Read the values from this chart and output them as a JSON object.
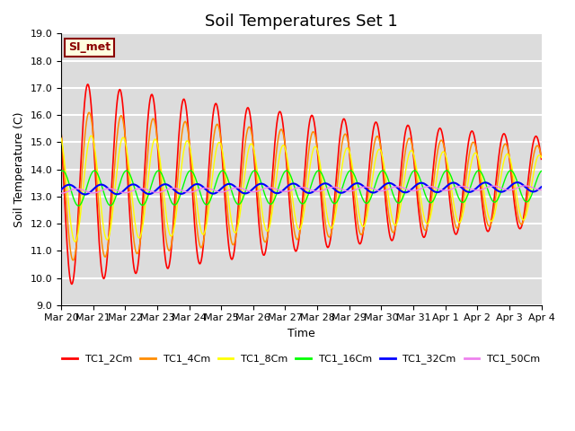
{
  "title": "Soil Temperatures Set 1",
  "xlabel": "Time",
  "ylabel": "Soil Temperature (C)",
  "ylim": [
    9.0,
    19.0
  ],
  "yticks": [
    9.0,
    10.0,
    11.0,
    12.0,
    13.0,
    14.0,
    15.0,
    16.0,
    17.0,
    18.0,
    19.0
  ],
  "ytick_labels": [
    "9.0",
    "10.0",
    "11.0",
    "12.0",
    "13.0",
    "14.0",
    "15.0",
    "16.0",
    "17.0",
    "18.0",
    "19.0"
  ],
  "xtick_labels": [
    "Mar 20",
    "Mar 21",
    "Mar 22",
    "Mar 23",
    "Mar 24",
    "Mar 25",
    "Mar 26",
    "Mar 27",
    "Mar 28",
    "Mar 29",
    "Mar 30",
    "Mar 31",
    "Apr 1",
    "Apr 2",
    "Apr 3",
    "Apr 4"
  ],
  "series_colors": [
    "red",
    "darkorange",
    "yellow",
    "lime",
    "blue",
    "violet"
  ],
  "series_labels": [
    "TC1_2Cm",
    "TC1_4Cm",
    "TC1_8Cm",
    "TC1_16Cm",
    "TC1_32Cm",
    "TC1_50Cm"
  ],
  "legend_label": "SI_met",
  "background_color": "#dcdcdc",
  "grid_color": "white",
  "title_fontsize": 13,
  "axis_fontsize": 9,
  "tick_fontsize": 8,
  "n_days": 15,
  "points_per_day": 48,
  "amplitudes": [
    3.8,
    2.8,
    2.0,
    0.65,
    0.18,
    0.08
  ],
  "phase_lags_hours": [
    0.0,
    1.0,
    2.5,
    5.0,
    10.0,
    16.0
  ],
  "base_temps": [
    13.5,
    13.4,
    13.3,
    13.3,
    13.25,
    13.2
  ],
  "base_trend": [
    0.04,
    0.04,
    0.04,
    0.08,
    0.1,
    0.12
  ],
  "amp_decay": [
    0.055,
    0.045,
    0.035,
    0.008,
    0.003,
    0.001
  ]
}
